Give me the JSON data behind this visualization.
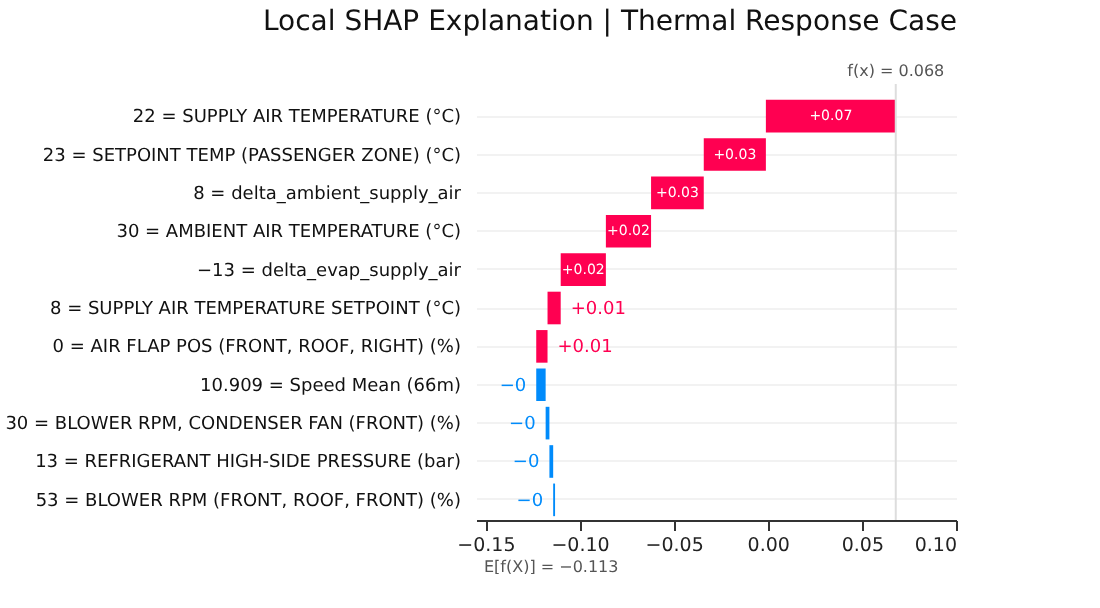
{
  "chart_data": {
    "type": "bar",
    "orientation": "horizontal",
    "title": "Local SHAP Explanation | Thermal Response Case",
    "categories": [
      "22 = SUPPLY AIR TEMPERATURE (°C)",
      "23 = SETPOINT TEMP (PASSENGER ZONE) (°C)",
      "8 = delta_ambient_supply_air",
      "30 = AMBIENT AIR TEMPERATURE (°C)",
      "−13 = delta_evap_supply_air",
      "8 = SUPPLY AIR TEMPERATURE SETPOINT (°C)",
      "0 = AIR FLAP POS (FRONT, ROOF, RIGHT) (%)",
      "10.909 = Speed Mean (66m)",
      "30 = BLOWER RPM, CONDENSER FAN (FRONT) (%)",
      "13 = REFRIGERANT HIGH-SIDE PRESSURE (bar)",
      "53 = BLOWER RPM (FRONT, ROOF, FRONT) (%)"
    ],
    "values": [
      0.069,
      0.033,
      0.028,
      0.024,
      0.024,
      0.007,
      0.006,
      -0.005,
      -0.002,
      -0.002,
      -0.001
    ],
    "base": [
      -0.001,
      -0.034,
      -0.062,
      -0.086,
      -0.11,
      -0.117,
      -0.123,
      -0.118,
      -0.116,
      -0.114,
      -0.113
    ],
    "colors": [
      "#ff0051",
      "#ff0051",
      "#ff0051",
      "#ff0051",
      "#ff0051",
      "#ff0051",
      "#ff0051",
      "#008bfb",
      "#008bfb",
      "#008bfb",
      "#008bfb"
    ],
    "value_labels": [
      "+0.07",
      "+0.03",
      "+0.03",
      "+0.02",
      "+0.02",
      "+0.01",
      "+0.01",
      "−0",
      "−0",
      "−0",
      "−0"
    ],
    "xlim": [
      -0.155,
      0.1
    ],
    "xticks": [
      {
        "value": -0.15,
        "label": "−0.15"
      },
      {
        "value": -0.1,
        "label": "−0.10"
      },
      {
        "value": -0.05,
        "label": "−0.05"
      },
      {
        "value": 0,
        "label": "0.00"
      },
      {
        "value": 0.05,
        "label": "0.05"
      },
      {
        "value": 0.1,
        "label": "0.10"
      }
    ],
    "ref_lines": [
      {
        "axis": "x",
        "value": 0.068,
        "label": "f(x) = 0.068",
        "color": "#dddddd"
      }
    ],
    "annotations": [
      "E[f(X)] = −0.113"
    ],
    "grid": "y"
  }
}
